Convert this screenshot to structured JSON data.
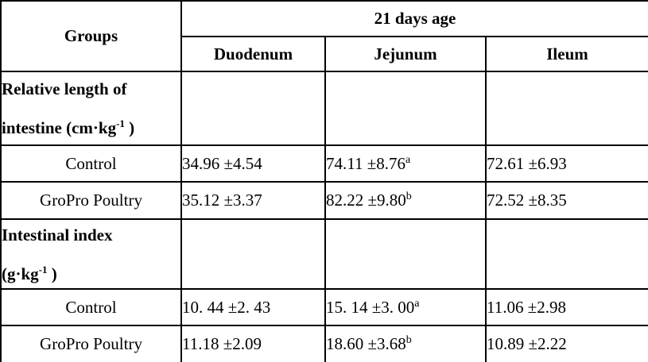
{
  "colors": {
    "border": "#000000",
    "text": "#000000",
    "background": "#ffffff"
  },
  "table": {
    "header": {
      "groups_label": "Groups",
      "age_label": "21 days age",
      "columns": [
        "Duodenum",
        "Jejunum",
        "Ileum"
      ]
    },
    "sections": [
      {
        "title_line1": "Relative length of",
        "title_line2_pre": "intestine (cm·kg",
        "title_sup": "-1",
        "title_line2_post": " )",
        "rows": [
          {
            "group": "Control",
            "cells": [
              {
                "value": "34.96 ±4.54",
                "sup": ""
              },
              {
                "value": "74.11 ±8.76",
                "sup": "a"
              },
              {
                "value": "72.61 ±6.93",
                "sup": ""
              }
            ]
          },
          {
            "group": "GroPro Poultry",
            "cells": [
              {
                "value": "35.12 ±3.37",
                "sup": ""
              },
              {
                "value": "82.22 ±9.80",
                "sup": "b"
              },
              {
                "value": "72.52 ±8.35",
                "sup": ""
              }
            ]
          }
        ]
      },
      {
        "title_line1": "Intestinal index",
        "title_line2_pre": "(g·kg",
        "title_sup": "-1",
        "title_line2_post": " )",
        "rows": [
          {
            "group": "Control",
            "cells": [
              {
                "value": "10. 44 ±2. 43",
                "sup": ""
              },
              {
                "value": "15. 14 ±3. 00",
                "sup": "a"
              },
              {
                "value": "11.06 ±2.98",
                "sup": ""
              }
            ]
          },
          {
            "group": "GroPro Poultry",
            "cells": [
              {
                "value": "11.18 ±2.09",
                "sup": ""
              },
              {
                "value": "18.60 ±3.68",
                "sup": "b"
              },
              {
                "value": "10.89 ±2.22",
                "sup": ""
              }
            ]
          }
        ]
      }
    ]
  }
}
